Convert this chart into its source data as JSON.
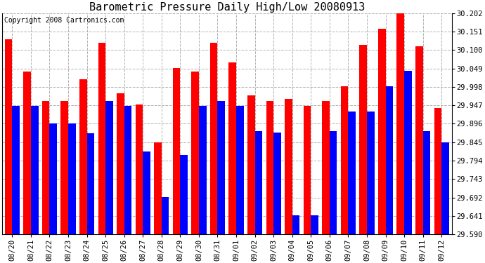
{
  "title": "Barometric Pressure Daily High/Low 20080913",
  "copyright": "Copyright 2008 Cartronics.com",
  "dates": [
    "08/20",
    "08/21",
    "08/22",
    "08/23",
    "08/24",
    "08/25",
    "08/26",
    "08/27",
    "08/28",
    "08/29",
    "08/30",
    "08/31",
    "09/01",
    "09/02",
    "09/03",
    "09/04",
    "09/05",
    "09/06",
    "09/07",
    "09/08",
    "09/09",
    "09/10",
    "09/11",
    "09/12"
  ],
  "highs": [
    30.13,
    30.04,
    29.96,
    29.96,
    30.02,
    30.12,
    29.98,
    29.95,
    29.845,
    30.05,
    30.04,
    30.12,
    30.065,
    29.975,
    29.96,
    29.965,
    29.945,
    29.96,
    30.0,
    30.115,
    30.16,
    30.205,
    30.11,
    29.94
  ],
  "lows": [
    29.945,
    29.945,
    29.896,
    29.896,
    29.87,
    29.96,
    29.945,
    29.82,
    29.693,
    29.81,
    29.945,
    29.96,
    29.945,
    29.875,
    29.872,
    29.643,
    29.643,
    29.875,
    29.93,
    29.93,
    30.0,
    30.042,
    29.876,
    29.845
  ],
  "ylim_min": 29.59,
  "ylim_max": 30.202,
  "yticks": [
    29.59,
    29.641,
    29.692,
    29.743,
    29.794,
    29.845,
    29.896,
    29.947,
    29.998,
    30.049,
    30.1,
    30.151,
    30.202
  ],
  "high_color": "#ff0000",
  "low_color": "#0000ff",
  "bg_color": "#ffffff",
  "grid_color": "#aaaaaa",
  "title_fontsize": 11,
  "copyright_fontsize": 7,
  "tick_fontsize": 7.5,
  "bar_width": 0.4
}
